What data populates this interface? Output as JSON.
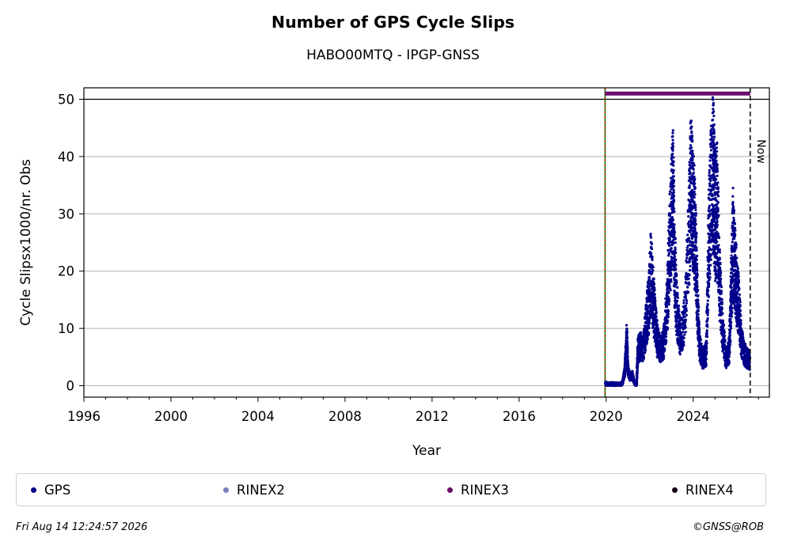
{
  "header": {
    "title": "Number of GPS Cycle Slips",
    "subtitle": "HABO00MTQ - IPGP-GNSS"
  },
  "legend": [
    {
      "label": "GPS",
      "color": "#00008b"
    },
    {
      "label": "RINEX2",
      "color": "#7b7bbf"
    },
    {
      "label": "RINEX3",
      "color": "#6b0b6b"
    },
    {
      "label": "RINEX4",
      "color": "#1a0017"
    }
  ],
  "footer": {
    "timestamp": "Fri Aug 14 12:24:57 2026",
    "credit": "©GNSS@ROB"
  },
  "chart_data": {
    "type": "scatter",
    "xlabel": "Year",
    "ylabel": "Cycle Slipsx1000/nr. Obs",
    "xlim": [
      1996,
      2027.5
    ],
    "ylim": [
      -2,
      52
    ],
    "xticks": [
      1996,
      2000,
      2004,
      2008,
      2012,
      2016,
      2020,
      2024
    ],
    "yticks": [
      0,
      10,
      20,
      30,
      40,
      50
    ],
    "grid": "horizontal",
    "now_label": "Now",
    "now_x": 2026.62,
    "station_start_x": 2019.95,
    "limit_line_y": 50,
    "rinex3_bar": {
      "x": [
        2019.95,
        2026.62
      ],
      "y": 51
    },
    "series": [
      {
        "name": "GPS",
        "color": "#00008b",
        "points": [
          [
            2019.97,
            0.5
          ],
          [
            2020.05,
            0.3
          ],
          [
            2020.2,
            0.1
          ],
          [
            2020.4,
            0.0
          ],
          [
            2020.6,
            0.2
          ],
          [
            2020.75,
            0.5
          ],
          [
            2020.85,
            2.5
          ],
          [
            2020.9,
            5.5
          ],
          [
            2020.95,
            8.5
          ],
          [
            2021.0,
            3.0
          ],
          [
            2021.1,
            1.5
          ],
          [
            2021.2,
            2.0
          ],
          [
            2021.3,
            0.5
          ],
          [
            2021.4,
            0.2
          ],
          [
            2021.45,
            6.5
          ],
          [
            2021.55,
            7.5
          ],
          [
            2021.7,
            7.0
          ],
          [
            2021.85,
            12.0
          ],
          [
            2021.95,
            15.0
          ],
          [
            2022.05,
            21.0
          ],
          [
            2022.15,
            17.0
          ],
          [
            2022.25,
            12.0
          ],
          [
            2022.35,
            8.5
          ],
          [
            2022.5,
            7.0
          ],
          [
            2022.65,
            8.0
          ],
          [
            2022.8,
            15.0
          ],
          [
            2022.9,
            25.0
          ],
          [
            2023.0,
            31.5
          ],
          [
            2023.07,
            36.5
          ],
          [
            2023.15,
            22.0
          ],
          [
            2023.25,
            14.0
          ],
          [
            2023.4,
            9.0
          ],
          [
            2023.6,
            12.0
          ],
          [
            2023.8,
            28.0
          ],
          [
            2023.9,
            38.0
          ],
          [
            2023.97,
            33.0
          ],
          [
            2024.05,
            30.0
          ],
          [
            2024.12,
            25.0
          ],
          [
            2024.2,
            15.0
          ],
          [
            2024.3,
            7.0
          ],
          [
            2024.45,
            5.0
          ],
          [
            2024.6,
            6.0
          ],
          [
            2024.7,
            25.0
          ],
          [
            2024.78,
            33.5
          ],
          [
            2024.9,
            40.0
          ],
          [
            2024.95,
            37.5
          ],
          [
            2025.02,
            31.5
          ],
          [
            2025.1,
            33.5
          ],
          [
            2025.2,
            20.0
          ],
          [
            2025.35,
            10.0
          ],
          [
            2025.5,
            5.0
          ],
          [
            2025.65,
            6.5
          ],
          [
            2025.75,
            18.0
          ],
          [
            2025.83,
            27.0
          ],
          [
            2025.92,
            22.0
          ],
          [
            2026.0,
            18.0
          ],
          [
            2026.1,
            15.0
          ],
          [
            2026.2,
            9.0
          ],
          [
            2026.35,
            6.0
          ],
          [
            2026.5,
            5.0
          ],
          [
            2026.6,
            4.8
          ]
        ]
      }
    ]
  }
}
